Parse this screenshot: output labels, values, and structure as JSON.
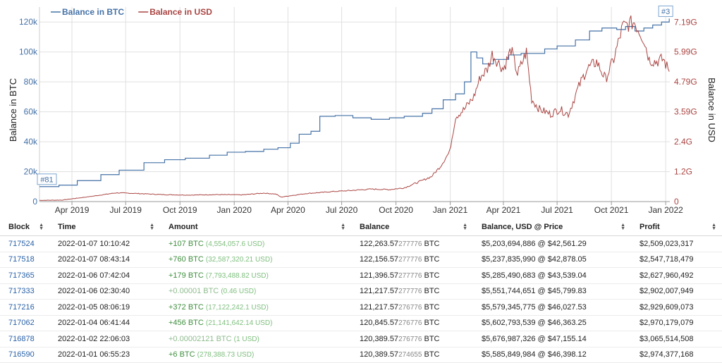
{
  "chart_data": {
    "type": "line",
    "legend": [
      {
        "name": "Balance in BTC",
        "color": "#4572a7"
      },
      {
        "name": "Balance in USD",
        "color": "#aa4643"
      }
    ],
    "legend_position": "top-left",
    "ylabel_left": "Balance in BTC",
    "ylabel_right": "Balance in USD",
    "y_left_ticks": [
      "0",
      "20k",
      "40k",
      "60k",
      "80k",
      "100k",
      "120k"
    ],
    "y_left_range": [
      0,
      130000
    ],
    "y_right_ticks": [
      "0",
      "1.2G",
      "2.4G",
      "3.59G",
      "4.79G",
      "5.99G",
      "7.19G"
    ],
    "y_right_range": [
      0,
      7790000000
    ],
    "x_ticks": [
      "Apr 2019",
      "Jul 2019",
      "Oct 2019",
      "Jan 2020",
      "Apr 2020",
      "Jul 2020",
      "Oct 2020",
      "Jan 2021",
      "Apr 2021",
      "Jul 2021",
      "Oct 2021",
      "Jan 2022"
    ],
    "x_range": [
      "2019-02-05",
      "2022-01-08"
    ],
    "grid": true,
    "annotations": [
      {
        "label": "#81",
        "x": "2019-02-05",
        "y": 10000
      },
      {
        "label": "#3",
        "x": "2022-01-07",
        "y": 122263
      }
    ],
    "series": [
      {
        "name": "Balance in BTC",
        "x": [
          "2019-02-05",
          "2019-03-10",
          "2019-04-10",
          "2019-05-20",
          "2019-06-20",
          "2019-08-01",
          "2019-09-05",
          "2019-10-10",
          "2019-11-20",
          "2019-12-20",
          "2020-01-20",
          "2020-02-20",
          "2020-03-15",
          "2020-04-05",
          "2020-04-20",
          "2020-05-10",
          "2020-05-25",
          "2020-06-20",
          "2020-07-20",
          "2020-08-20",
          "2020-09-20",
          "2020-10-15",
          "2020-11-15",
          "2020-12-01",
          "2020-12-20",
          "2021-01-10",
          "2021-01-25",
          "2021-02-05",
          "2021-02-15",
          "2021-02-25",
          "2021-03-15",
          "2021-04-10",
          "2021-05-01",
          "2021-05-20",
          "2021-06-10",
          "2021-07-01",
          "2021-08-01",
          "2021-08-25",
          "2021-09-15",
          "2021-10-10",
          "2021-10-25",
          "2021-11-10",
          "2021-11-25",
          "2021-12-10",
          "2021-12-25",
          "2022-01-07"
        ],
        "values": [
          10000,
          11000,
          14000,
          18000,
          21000,
          26000,
          28000,
          29000,
          31000,
          33000,
          33500,
          35000,
          36000,
          39000,
          45000,
          47000,
          57000,
          57500,
          56000,
          55000,
          56000,
          57000,
          59000,
          62000,
          68000,
          72000,
          80000,
          100000,
          96000,
          92000,
          95000,
          98000,
          99000,
          99000,
          102000,
          104000,
          108000,
          114000,
          116000,
          115000,
          117000,
          114000,
          116000,
          118000,
          120000,
          122263
        ]
      },
      {
        "name": "Balance in USD",
        "x": [
          "2019-02-05",
          "2019-03-15",
          "2019-05-01",
          "2019-06-15",
          "2019-07-15",
          "2019-09-01",
          "2019-10-15",
          "2019-12-01",
          "2020-01-15",
          "2020-02-20",
          "2020-03-12",
          "2020-03-20",
          "2020-05-01",
          "2020-06-15",
          "2020-07-20",
          "2020-08-20",
          "2020-09-20",
          "2020-10-15",
          "2020-11-10",
          "2020-11-30",
          "2020-12-15",
          "2020-12-31",
          "2021-01-10",
          "2021-01-25",
          "2021-02-10",
          "2021-02-21",
          "2021-03-05",
          "2021-03-13",
          "2021-04-01",
          "2021-04-14",
          "2021-04-25",
          "2021-05-10",
          "2021-05-19",
          "2021-06-01",
          "2021-06-20",
          "2021-07-05",
          "2021-07-20",
          "2021-08-05",
          "2021-08-20",
          "2021-09-06",
          "2021-09-21",
          "2021-10-05",
          "2021-10-20",
          "2021-11-09",
          "2021-11-25",
          "2021-12-04",
          "2021-12-15",
          "2021-12-28",
          "2022-01-07"
        ],
        "values": [
          50000000,
          60000000,
          200000000,
          350000000,
          330000000,
          280000000,
          260000000,
          280000000,
          270000000,
          340000000,
          300000000,
          180000000,
          320000000,
          400000000,
          450000000,
          500000000,
          480000000,
          550000000,
          800000000,
          1000000000,
          1400000000,
          2000000000,
          3400000000,
          3700000000,
          4200000000,
          5000000000,
          5300000000,
          5900000000,
          5300000000,
          6100000000,
          5100000000,
          6000000000,
          4100000000,
          3700000000,
          3500000000,
          3700000000,
          3500000000,
          4500000000,
          5300000000,
          5600000000,
          4900000000,
          5700000000,
          7000000000,
          7190000000,
          6500000000,
          5700000000,
          5600000000,
          5700000000,
          5203694886
        ]
      }
    ]
  },
  "table": {
    "headers": [
      "Block",
      "Time",
      "Amount",
      "Balance",
      "Balance, USD @ Price",
      "Profit"
    ],
    "rows": [
      {
        "block": "717524",
        "time": "2022-01-07 10:10:42",
        "amount": "+107 BTC",
        "amount_usd": "(4,554,057.6 USD)",
        "bal_hi": "122,263.57",
        "bal_lo": "277776",
        "bal_unit": "BTC",
        "usd": "$5,203,694,886 @ $42,561.29",
        "profit": "$2,509,023,317"
      },
      {
        "block": "717518",
        "time": "2022-01-07 08:43:14",
        "amount": "+760 BTC",
        "amount_usd": "(32,587,320.21 USD)",
        "bal_hi": "122,156.57",
        "bal_lo": "277776",
        "bal_unit": "BTC",
        "usd": "$5,237,835,990 @ $42,878.05",
        "profit": "$2,547,718,479"
      },
      {
        "block": "717365",
        "time": "2022-01-06 07:42:04",
        "amount": "+179 BTC",
        "amount_usd": "(7,793,488.82 USD)",
        "bal_hi": "121,396.57",
        "bal_lo": "277776",
        "bal_unit": "BTC",
        "usd": "$5,285,490,683 @ $43,539.04",
        "profit": "$2,627,960,492"
      },
      {
        "block": "717333",
        "time": "2022-01-06 02:30:40",
        "amount": "+0.00001 BTC",
        "amount_usd": "(0.46 USD)",
        "bal_hi": "121,217.57",
        "bal_lo": "277776",
        "bal_unit": "BTC",
        "usd": "$5,551,744,651 @ $45,799.83",
        "profit": "$2,902,007,949"
      },
      {
        "block": "717216",
        "time": "2022-01-05 08:06:19",
        "amount": "+372 BTC",
        "amount_usd": "(17,122,242.1 USD)",
        "bal_hi": "121,217.57",
        "bal_lo": "276776",
        "bal_unit": "BTC",
        "usd": "$5,579,345,775 @ $46,027.53",
        "profit": "$2,929,609,073"
      },
      {
        "block": "717062",
        "time": "2022-01-04 06:41:44",
        "amount": "+456 BTC",
        "amount_usd": "(21,141,642.14 USD)",
        "bal_hi": "120,845.57",
        "bal_lo": "276776",
        "bal_unit": "BTC",
        "usd": "$5,602,793,539 @ $46,363.25",
        "profit": "$2,970,179,079"
      },
      {
        "block": "716878",
        "time": "2022-01-02 22:06:03",
        "amount": "+0.00002121 BTC",
        "amount_usd": "(1 USD)",
        "bal_hi": "120,389.57",
        "bal_lo": "276776",
        "bal_unit": "BTC",
        "usd": "$5,676,987,326 @ $47,155.14",
        "profit": "$3,065,514,508"
      },
      {
        "block": "716590",
        "time": "2022-01-01 06:55:23",
        "amount": "+6 BTC",
        "amount_usd": "(278,388.73 USD)",
        "bal_hi": "120,389.57",
        "bal_lo": "274655",
        "bal_unit": "BTC",
        "usd": "$5,585,849,984 @ $46,398.12",
        "profit": "$2,974,377,168"
      }
    ]
  }
}
